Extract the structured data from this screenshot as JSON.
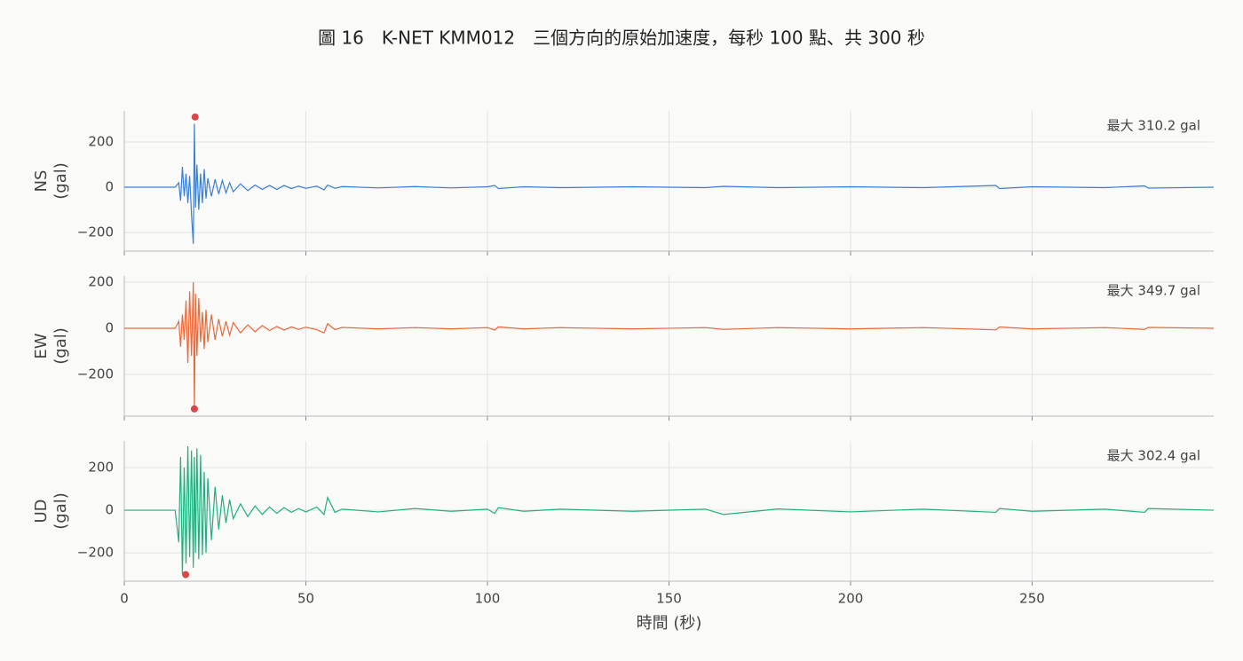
{
  "chart_data": [
    {
      "type": "line",
      "title": "圖 16　K-NET KMM012　三個方向的原始加速度，每秒 100 點、共 300 秒",
      "ylabel": "NS\n(gal)",
      "color": "#3a7fd5",
      "xlim": [
        0,
        300
      ],
      "xticks": [
        0,
        50,
        100,
        150,
        200,
        250
      ],
      "ylim": [
        -282,
        337
      ],
      "yticks": [
        {
          "value": -200,
          "label": "−200"
        },
        0,
        200
      ],
      "grid": true,
      "peak": {
        "x": 19.5,
        "y": 310.2,
        "label": "最大 310.2 gal"
      },
      "x": [
        0,
        14,
        15,
        15.5,
        16,
        16.5,
        17,
        17.5,
        18,
        18.5,
        19,
        19.3,
        19.6,
        20,
        20.5,
        21,
        21.5,
        22,
        22.5,
        23,
        24,
        25,
        26,
        27,
        28,
        29,
        30,
        32,
        34,
        36,
        38,
        40,
        42,
        44,
        46,
        48,
        50,
        53,
        55,
        56,
        58,
        60,
        70,
        80,
        90,
        100,
        102,
        103,
        110,
        120,
        140,
        160,
        165,
        180,
        200,
        220,
        240,
        241,
        250,
        270,
        281,
        282,
        300
      ],
      "values": [
        0,
        0,
        20,
        -60,
        90,
        -40,
        60,
        -70,
        50,
        -120,
        -250,
        280,
        -90,
        100,
        -100,
        60,
        -70,
        80,
        -50,
        40,
        -40,
        35,
        -30,
        30,
        -25,
        20,
        -20,
        15,
        -15,
        10,
        -10,
        8,
        -10,
        8,
        -6,
        5,
        -5,
        5,
        -12,
        10,
        -5,
        3,
        -3,
        3,
        -3,
        2,
        8,
        -6,
        2,
        -2,
        2,
        -2,
        4,
        -2,
        2,
        -2,
        8,
        -6,
        2,
        -2,
        6,
        -4,
        0
      ]
    },
    {
      "type": "line",
      "ylabel": "EW\n(gal)",
      "color": "#e8693a",
      "xlim": [
        0,
        300
      ],
      "xticks": [
        0,
        50,
        100,
        150,
        200,
        250
      ],
      "ylim": [
        -381,
        227
      ],
      "yticks": [
        {
          "value": -200,
          "label": "−200"
        },
        0,
        200
      ],
      "grid": true,
      "peak": {
        "x": 19.3,
        "y": -349.7,
        "label": "最大 349.7 gal"
      },
      "x": [
        0,
        14,
        15,
        15.5,
        16,
        16.5,
        17,
        17.5,
        18,
        18.5,
        19,
        19.3,
        19.6,
        20,
        20.5,
        21,
        21.5,
        22,
        22.5,
        23,
        24,
        25,
        26,
        27,
        28,
        29,
        30,
        32,
        34,
        36,
        38,
        40,
        42,
        44,
        46,
        48,
        50,
        53,
        55,
        56,
        58,
        60,
        70,
        80,
        90,
        100,
        102,
        103,
        110,
        120,
        140,
        160,
        165,
        180,
        200,
        220,
        240,
        241,
        250,
        270,
        281,
        282,
        300
      ],
      "values": [
        0,
        0,
        30,
        -80,
        60,
        -50,
        120,
        -150,
        160,
        -120,
        200,
        -350,
        150,
        -120,
        130,
        -60,
        70,
        -90,
        80,
        -60,
        60,
        -50,
        40,
        -35,
        30,
        -30,
        25,
        -20,
        15,
        -15,
        12,
        -10,
        8,
        -8,
        6,
        -5,
        5,
        -6,
        -20,
        20,
        -6,
        4,
        -3,
        3,
        -3,
        3,
        -8,
        6,
        -3,
        3,
        -3,
        3,
        -5,
        3,
        -3,
        3,
        -7,
        6,
        -3,
        3,
        -5,
        4,
        0
      ]
    },
    {
      "type": "line",
      "ylabel": "UD\n(gal)",
      "xlabel": "時間 (秒)",
      "color": "#1fb07f",
      "xlim": [
        0,
        300
      ],
      "xticks": [
        0,
        50,
        100,
        150,
        200,
        250
      ],
      "ylim": [
        -333,
        325
      ],
      "yticks": [
        {
          "value": -200,
          "label": "−200"
        },
        0,
        200
      ],
      "grid": true,
      "peak": {
        "x": 16.9,
        "y": -302.4,
        "label": "最大 302.4 gal"
      },
      "x": [
        0,
        14,
        15,
        15.5,
        16,
        16.5,
        17,
        17.5,
        18,
        18.5,
        19,
        19.3,
        19.6,
        20,
        20.5,
        21,
        21.5,
        22,
        22.5,
        23,
        24,
        25,
        26,
        27,
        28,
        29,
        30,
        32,
        34,
        36,
        38,
        40,
        42,
        44,
        46,
        48,
        50,
        53,
        55,
        56,
        58,
        60,
        70,
        80,
        90,
        100,
        102,
        103,
        110,
        120,
        140,
        160,
        165,
        180,
        200,
        220,
        240,
        241,
        250,
        270,
        281,
        282,
        300
      ],
      "values": [
        0,
        0,
        -150,
        250,
        -300,
        200,
        -250,
        300,
        -220,
        280,
        -270,
        250,
        -200,
        290,
        -230,
        260,
        -210,
        180,
        -200,
        150,
        -140,
        110,
        -90,
        70,
        -60,
        50,
        -40,
        30,
        -30,
        20,
        -20,
        15,
        -15,
        12,
        -10,
        8,
        -8,
        15,
        -20,
        60,
        -10,
        5,
        -8,
        8,
        -5,
        5,
        -15,
        12,
        -5,
        5,
        -5,
        5,
        -20,
        6,
        -8,
        5,
        -10,
        8,
        -5,
        5,
        -10,
        8,
        0
      ]
    }
  ]
}
